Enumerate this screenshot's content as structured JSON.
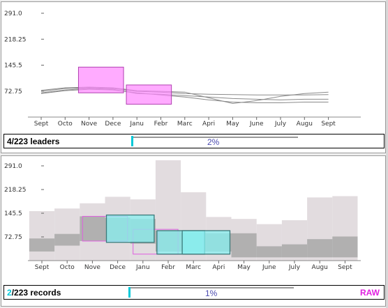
{
  "top_panel": {
    "y_ticks": [
      "291.0",
      "218.25",
      "145.5",
      "72.75"
    ],
    "x_ticks": [
      "Sept",
      "Octo",
      "Nove",
      "Dece",
      "Janu",
      "Febr",
      "Marc",
      "Apri",
      "May",
      "June",
      "July",
      "Augu",
      "Sept"
    ],
    "status": {
      "count": "4/223 leaders",
      "percent": "2%"
    }
  },
  "bottom_panel": {
    "y_ticks": [
      "291.0",
      "218.25",
      "145.5",
      "72.75"
    ],
    "x_ticks": [
      "Sept",
      "Octo",
      "Nove",
      "Dece",
      "Janu",
      "Febr",
      "Marc",
      "Apri",
      "May",
      "June",
      "July",
      "Augu",
      "Sept"
    ],
    "status": {
      "count_highlight": "2",
      "count_rest": "/223 records",
      "percent": "1%",
      "mode": "RAW"
    }
  },
  "colors": {
    "leader_box": "#ff88ff",
    "record_box": "#88f0f0",
    "envelope": "#e2dcdf",
    "band": "#a8a8a8",
    "accent": "#00c8d8"
  },
  "chart_data": [
    {
      "type": "line",
      "title": "",
      "xlabel": "",
      "ylabel": "",
      "categories": [
        "Sept",
        "Octo",
        "Nove",
        "Dece",
        "Janu",
        "Febr",
        "Marc",
        "Apri",
        "May",
        "June",
        "July",
        "Augu",
        "Sept"
      ],
      "ylim": [
        0,
        291.0
      ],
      "series": [
        {
          "values": [
            72,
            80,
            82,
            80,
            72,
            70,
            66,
            64,
            63,
            62,
            62,
            62,
            63
          ]
        },
        {
          "values": [
            68,
            76,
            80,
            78,
            66,
            64,
            60,
            56,
            52,
            50,
            48,
            50,
            50
          ]
        },
        {
          "values": [
            75,
            82,
            84,
            82,
            74,
            72,
            70,
            54,
            38,
            46,
            58,
            66,
            70
          ]
        },
        {
          "values": [
            66,
            74,
            78,
            76,
            68,
            62,
            56,
            48,
            42,
            40,
            40,
            42,
            42
          ]
        }
      ],
      "boxes": [
        {
          "from": "Nove",
          "to": "Dece",
          "ymin": 68,
          "ymax": 140
        },
        {
          "from": "Janu",
          "to": "Febr",
          "ymin": 36,
          "ymax": 90
        }
      ]
    },
    {
      "type": "area",
      "title": "",
      "xlabel": "",
      "ylabel": "",
      "categories": [
        "Sept",
        "Octo",
        "Nove",
        "Dece",
        "Janu",
        "Febr",
        "Marc",
        "Apri",
        "May",
        "June",
        "July",
        "Augu",
        "Sept"
      ],
      "ylim": [
        0,
        291.0
      ],
      "envelope_max": [
        152,
        160,
        176,
        196,
        188,
        312,
        210,
        134,
        128,
        112,
        124,
        194,
        198
      ],
      "band": [
        {
          "low": 28,
          "high": 68
        },
        {
          "low": 46,
          "high": 82
        },
        {
          "low": 60,
          "high": 136
        },
        {
          "low": 60,
          "high": 132
        },
        {
          "low": 52,
          "high": 128
        },
        {
          "low": 28,
          "high": 92
        },
        {
          "low": 28,
          "high": 86
        },
        {
          "low": 28,
          "high": 84
        },
        {
          "low": 10,
          "high": 84
        },
        {
          "low": 10,
          "high": 44
        },
        {
          "low": 10,
          "high": 50
        },
        {
          "low": 10,
          "high": 66
        },
        {
          "low": 10,
          "high": 74
        }
      ],
      "selected_boxes": [
        {
          "color": "magenta",
          "from": "Nove",
          "to": "Dece",
          "ymin": 60,
          "ymax": 136
        },
        {
          "color": "magenta",
          "from": "Janu",
          "to": "Febr",
          "ymin": 20,
          "ymax": 96
        },
        {
          "color": "magenta",
          "from": "Febr",
          "to": "Marc",
          "ymin": 20,
          "ymax": 92
        },
        {
          "color": "cyan",
          "from": "Dece",
          "to": "Janu",
          "ymin": 56,
          "ymax": 140
        },
        {
          "color": "cyan",
          "from": "Febr",
          "to": "Marc",
          "ymin": 20,
          "ymax": 92
        },
        {
          "color": "cyan",
          "from": "Marc",
          "to": "Apri",
          "ymin": 20,
          "ymax": 92
        }
      ]
    }
  ]
}
